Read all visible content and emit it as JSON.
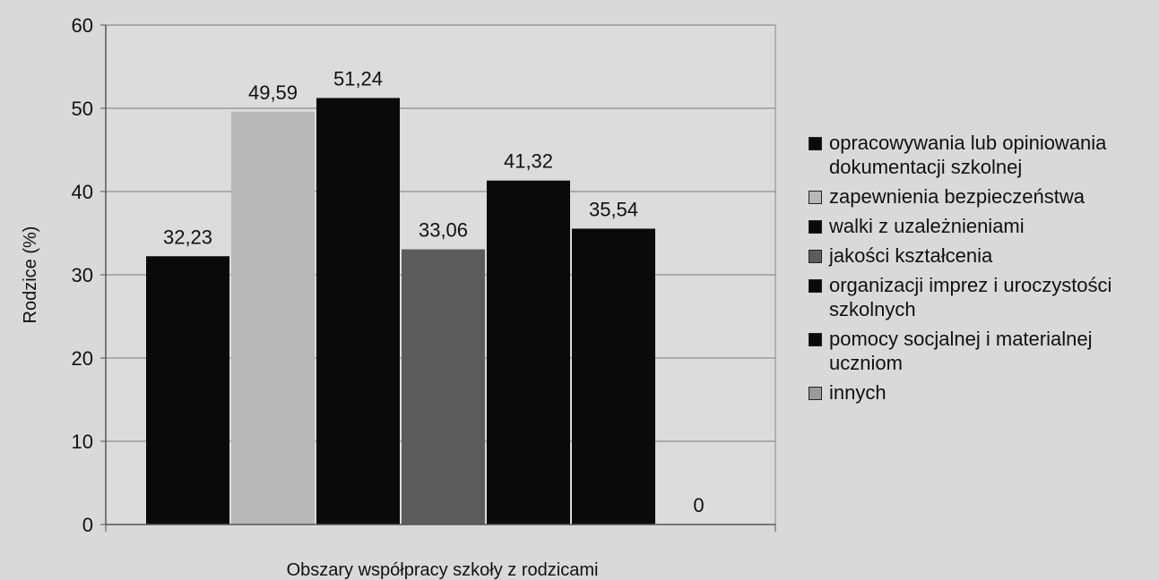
{
  "chart_data": {
    "type": "bar",
    "title": "",
    "xlabel": "Obszary współpracy szkoły z rodzicami",
    "ylabel": "Rodzice (%)",
    "ylim": [
      0,
      60
    ],
    "yticks": [
      0,
      10,
      20,
      30,
      40,
      50,
      60
    ],
    "grid": true,
    "legend_position": "right",
    "series": [
      {
        "name": "opracowywania lub opiniowania dokumentacji szkolnej",
        "value": 32.23,
        "label": "32,23",
        "color": "#0a0a0a"
      },
      {
        "name": "zapewnienia bezpieczeństwa",
        "value": 49.59,
        "label": "49,59",
        "color": "#b8b8b8"
      },
      {
        "name": "walki z uzależnieniami",
        "value": 51.24,
        "label": "51,24",
        "color": "#0a0a0a"
      },
      {
        "name": "jakości kształcenia",
        "value": 33.06,
        "label": "33,06",
        "color": "#5c5c5c"
      },
      {
        "name": "organizacji imprez i uroczystości szkolnych",
        "value": 41.32,
        "label": "41,32",
        "color": "#0a0a0a"
      },
      {
        "name": "pomocy socjalnej i materialnej uczniom",
        "value": 35.54,
        "label": "35,54",
        "color": "#0a0a0a"
      },
      {
        "name": "innych",
        "value": 0,
        "label": "0",
        "color": "#9a9a9a"
      }
    ]
  }
}
